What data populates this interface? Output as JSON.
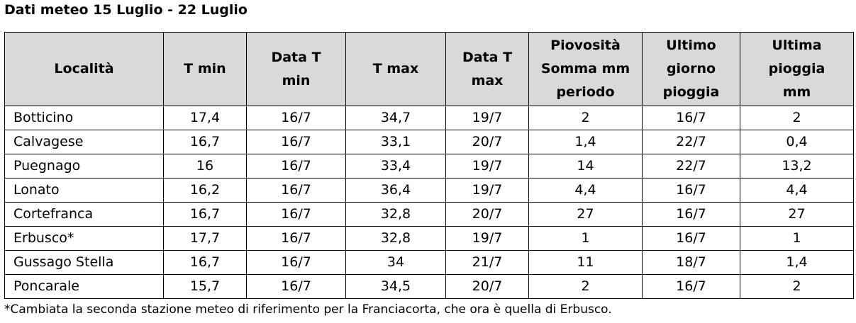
{
  "title": "Dati meteo 15 Luglio - 22 Luglio",
  "table": {
    "headers": [
      "Località",
      "T min",
      "Data T min",
      "T max",
      "Data T max",
      "Piovosità Somma mm periodo",
      "Ultimo giorno pioggia",
      "Ultima pioggia mm"
    ],
    "rows": [
      [
        "Botticino",
        "17,4",
        "16/7",
        "34,7",
        "19/7",
        "2",
        "16/7",
        "2"
      ],
      [
        "Calvagese",
        "16,7",
        "16/7",
        "33,1",
        "20/7",
        "1,4",
        "22/7",
        "0,4"
      ],
      [
        "Puegnago",
        "16",
        "16/7",
        "33,4",
        "19/7",
        "14",
        "22/7",
        "13,2"
      ],
      [
        "Lonato",
        "16,2",
        "16/7",
        "36,4",
        "19/7",
        "4,4",
        "16/7",
        "4,4"
      ],
      [
        "Cortefranca",
        "16,7",
        "16/7",
        "32,8",
        "20/7",
        "27",
        "16/7",
        "27"
      ],
      [
        "Erbusco*",
        "17,7",
        "16/7",
        "32,8",
        "19/7",
        "1",
        "16/7",
        "1"
      ],
      [
        "Gussago Stella",
        "16,7",
        "16/7",
        "34",
        "21/7",
        "11",
        "18/7",
        "1,4"
      ],
      [
        "Poncarale",
        "15,7",
        "16/7",
        "34,5",
        "20/7",
        "2",
        "16/7",
        "2"
      ]
    ]
  },
  "footnote": "*Cambiata la seconda stazione meteo di riferimento per la Franciacorta, che ora è quella di Erbusco.",
  "colors": {
    "header_bg": "#d9d9d9",
    "border": "#000000"
  }
}
